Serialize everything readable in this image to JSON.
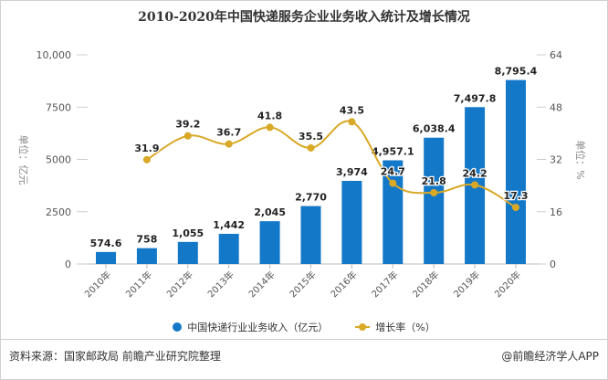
{
  "chart_data": {
    "type": "bar+line",
    "title": "2010-2020年中国快递服务企业业务收入统计及增长情况",
    "categories": [
      "2010年",
      "2011年",
      "2012年",
      "2013年",
      "2014年",
      "2015年",
      "2016年",
      "2017年",
      "2018年",
      "2019年",
      "2020年"
    ],
    "series": [
      {
        "name": "中国快递行业业务收入（亿元）",
        "type": "bar",
        "axis": "left",
        "color": "#1478c8",
        "values": [
          574.6,
          758,
          1055,
          1442,
          2045,
          2770,
          3974,
          4957.1,
          6038.4,
          7497.8,
          8795.4
        ],
        "labels": [
          "574.6",
          "758",
          "1,055",
          "1,442",
          "2,045",
          "2,770",
          "3,974",
          "4,957.1",
          "6,038.4",
          "7,497.8",
          "8,795.4"
        ]
      },
      {
        "name": "增长率（%）",
        "type": "line",
        "axis": "right",
        "color": "#d9a826",
        "values": [
          null,
          31.9,
          39.2,
          36.7,
          41.8,
          35.5,
          43.5,
          24.7,
          21.8,
          24.2,
          17.3
        ],
        "labels": [
          "",
          "31.9",
          "39.2",
          "36.7",
          "41.8",
          "35.5",
          "43.5",
          "24.7",
          "21.8",
          "24.2",
          "17.3"
        ]
      }
    ],
    "ylabel": "单位：亿元",
    "y2label": "单位：%",
    "ylim": [
      0,
      10000
    ],
    "y2lim": [
      0,
      64
    ],
    "yticks": [
      "0",
      "2500",
      "5000",
      "7500",
      "10,000"
    ],
    "y2ticks": [
      "0",
      "16",
      "32",
      "48",
      "64"
    ],
    "grid": false,
    "legend": "bottom"
  },
  "legend": {
    "bar_label": "中国快递行业业务收入（亿元）",
    "line_label": "增长率（%）"
  },
  "footer": {
    "source": "资料来源：国家邮政局 前瞻产业研究院整理",
    "brand": "@前瞻经济学人APP"
  }
}
